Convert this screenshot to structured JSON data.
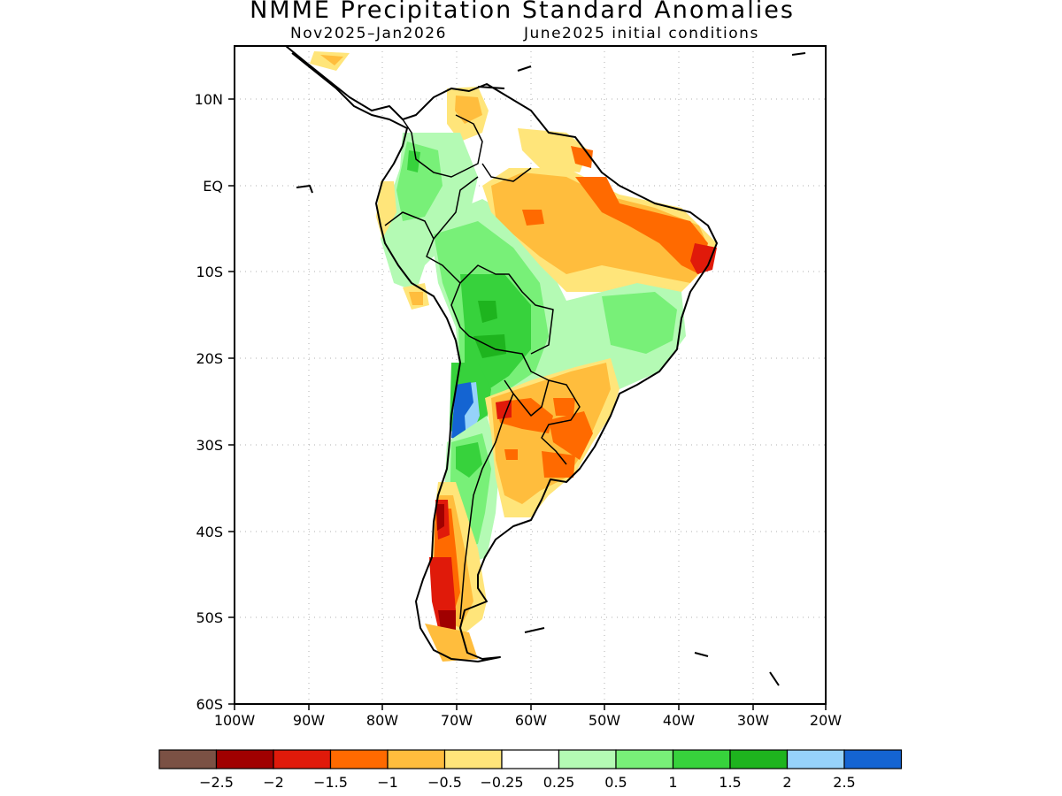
{
  "title": "NMME Precipitation Standard Anomalies",
  "subtitle_period": "Nov2025–Jan2026",
  "subtitle_init": "June2025 initial conditions",
  "map": {
    "lon_range": [
      -100,
      -20
    ],
    "lat_range": [
      -60,
      15
    ],
    "lon_ticks": [
      "100W",
      "90W",
      "80W",
      "70W",
      "60W",
      "50W",
      "40W",
      "30W",
      "20W"
    ],
    "lat_ticks": [
      "10N",
      "EQ",
      "10S",
      "20S",
      "30S",
      "40S",
      "50S",
      "60S"
    ],
    "grid": "dotted"
  },
  "legend": {
    "colors": [
      "#7b5144",
      "#a00000",
      "#e01a0a",
      "#ff6a00",
      "#ffbd3d",
      "#ffe57a",
      "#ffffff",
      "#b4fab4",
      "#78f078",
      "#37d23c",
      "#1eb41e",
      "#96d2fa",
      "#1464d2"
    ],
    "labels": [
      "−2.5",
      "−2",
      "−1.5",
      "−1",
      "−0.5",
      "−0.25",
      "0.25",
      "0.5",
      "1",
      "1.5",
      "2",
      "2.5"
    ]
  }
}
